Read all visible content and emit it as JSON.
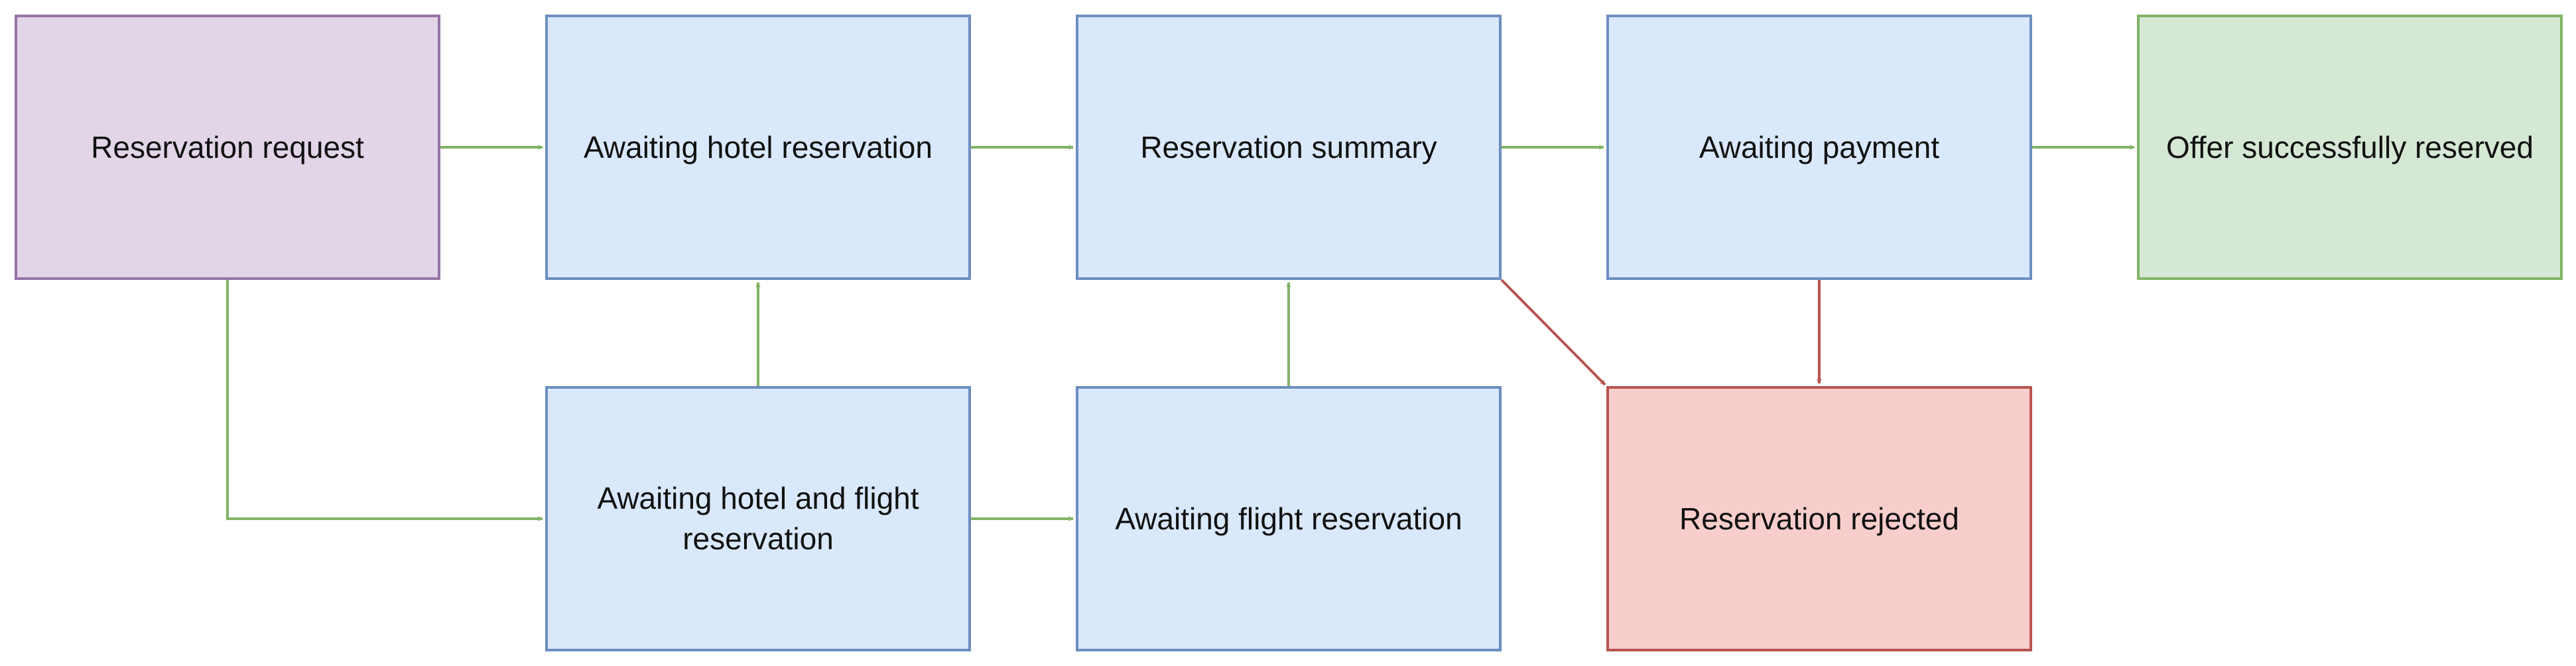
{
  "nodes": {
    "reservation_request": "Reservation request",
    "awaiting_hotel_reservation": "Awaiting hotel reservation",
    "reservation_summary": "Reservation summary",
    "awaiting_payment": "Awaiting payment",
    "offer_successfully_reserved": "Offer successfully reserved",
    "awaiting_hotel_and_flight_reservation": "Awaiting hotel and flight reservation",
    "awaiting_flight_reservation": "Awaiting flight reservation",
    "reservation_rejected": "Reservation rejected"
  },
  "colors": {
    "purple_fill": "#e1d5e7",
    "purple_stroke": "#9673a6",
    "blue_fill": "#dae8fc",
    "blue_stroke": "#6c8ebf",
    "green_fill": "#d5e8d4",
    "green_stroke": "#82b366",
    "red_fill": "#f8cecc",
    "red_stroke": "#b85450",
    "success_arrow": "#82b366",
    "reject_arrow": "#b85450"
  },
  "edges": [
    {
      "from": "Reservation request",
      "to": "Awaiting hotel reservation",
      "kind": "success"
    },
    {
      "from": "Reservation request",
      "to": "Awaiting hotel and flight reservation",
      "kind": "success"
    },
    {
      "from": "Awaiting hotel reservation",
      "to": "Reservation summary",
      "kind": "success"
    },
    {
      "from": "Awaiting hotel and flight reservation",
      "to": "Awaiting hotel reservation",
      "kind": "success"
    },
    {
      "from": "Awaiting hotel and flight reservation",
      "to": "Awaiting flight reservation",
      "kind": "success"
    },
    {
      "from": "Awaiting flight reservation",
      "to": "Reservation summary",
      "kind": "success"
    },
    {
      "from": "Reservation summary",
      "to": "Awaiting payment",
      "kind": "success"
    },
    {
      "from": "Reservation summary",
      "to": "Reservation rejected",
      "kind": "reject"
    },
    {
      "from": "Awaiting payment",
      "to": "Offer successfully reserved",
      "kind": "success"
    },
    {
      "from": "Awaiting payment",
      "to": "Reservation rejected",
      "kind": "reject"
    }
  ]
}
